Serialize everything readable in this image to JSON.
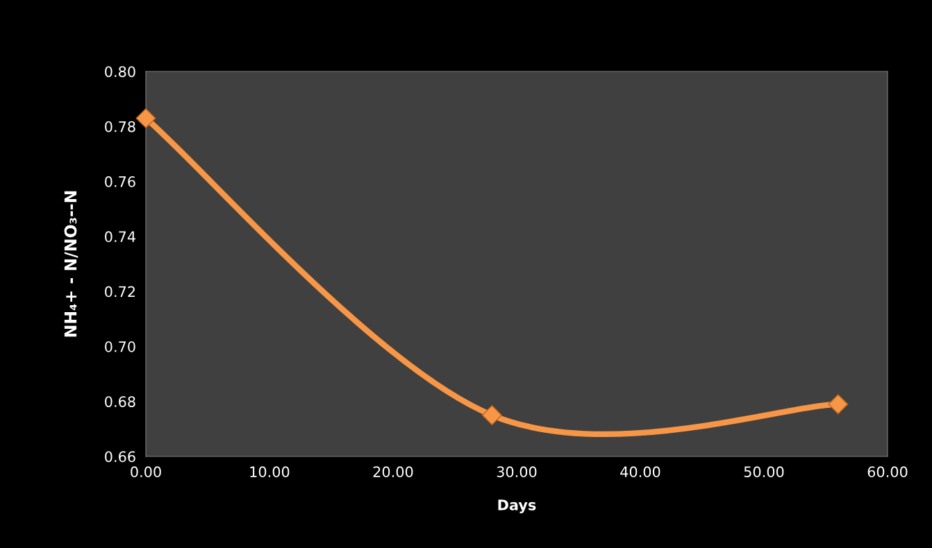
{
  "chart_data": {
    "type": "line",
    "xlabel": "Days",
    "ylabel": "NH₄+ - N/NO₃--N",
    "x": [
      0,
      28,
      56
    ],
    "series": [
      {
        "color": "#f79646",
        "values": [
          0.783,
          0.675,
          0.679
        ]
      }
    ],
    "xlim": [
      0,
      60
    ],
    "xticks": [
      {
        "value": 0,
        "label": "0.00"
      },
      {
        "value": 10,
        "label": "10.00"
      },
      {
        "value": 20,
        "label": "20.00"
      },
      {
        "value": 30,
        "label": "30.00"
      },
      {
        "value": 40,
        "label": "40.00"
      },
      {
        "value": 50,
        "label": "50.00"
      },
      {
        "value": 60,
        "label": "60.00"
      }
    ],
    "ylim": [
      0.66,
      0.8
    ],
    "yticks": [
      {
        "value": 0.66,
        "label": "0.66"
      },
      {
        "value": 0.68,
        "label": "0.68"
      },
      {
        "value": 0.7,
        "label": "0.70"
      },
      {
        "value": 0.72,
        "label": "0.72"
      },
      {
        "value": 0.74,
        "label": "0.74"
      },
      {
        "value": 0.76,
        "label": "0.76"
      },
      {
        "value": 0.78,
        "label": "0.78"
      },
      {
        "value": 0.8,
        "label": "0.80"
      }
    ],
    "grid": false,
    "marker": "diamond",
    "line_style": "solid"
  }
}
